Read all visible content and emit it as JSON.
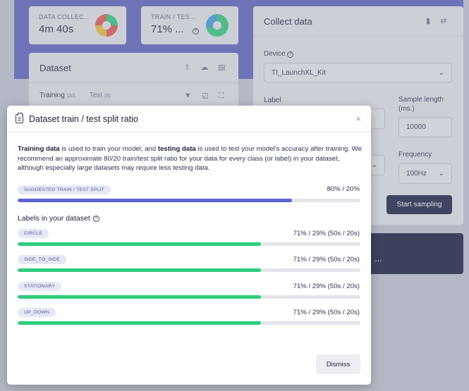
{
  "background": {
    "stats": [
      {
        "label": "DATA COLLEC...",
        "value": "4m 40s"
      },
      {
        "label": "TRAIN / TES...",
        "value": "71% ..."
      }
    ],
    "dataset": {
      "title": "Dataset",
      "tab_training": "Training",
      "training_count": "(20)",
      "tab_test": "Test",
      "test_count": "(8)"
    },
    "collect": {
      "title": "Collect data",
      "device_label": "Device",
      "device_value": "TI_LaunchXL_Kit",
      "label_label": "Label",
      "sample_length_label": "Sample length (ms.)",
      "sample_length_value": "10000",
      "frequency_label": "Frequency",
      "frequency_value": "100Hz",
      "start_button": "Start sampling"
    },
    "dark_card_text": "..."
  },
  "modal": {
    "title": "Dataset train / test split ratio",
    "close": "×",
    "desc_bold1": "Training data",
    "desc_mid1": " is used to train your model, and ",
    "desc_bold2": "testing data",
    "desc_rest": " is used to test your model's accuracy after training. We recommend an approximate 80/20 train/test split ratio for your data for every class (or label) in your dataset, although especially large datasets may require less testing data.",
    "suggested": {
      "label": "SUGGESTED TRAIN / TEST SPLIT",
      "ratio": "80% / 20%",
      "fraction": 0.8
    },
    "labels_title": "Labels in your dataset",
    "labels": [
      {
        "name": "CIRCLE",
        "ratio": "71% / 29% (50s / 20s)",
        "fraction": 0.71
      },
      {
        "name": "SIDE_TO_SIDE",
        "ratio": "71% / 29% (50s / 20s)",
        "fraction": 0.71
      },
      {
        "name": "STATIONARY",
        "ratio": "71% / 29% (50s / 20s)",
        "fraction": 0.71
      },
      {
        "name": "UP_DOWN",
        "ratio": "71% / 29% (50s / 20s)",
        "fraction": 0.71
      }
    ],
    "dismiss_label": "Dismiss"
  },
  "colors": {
    "suggested_bar": "#5b63d3",
    "label_bar": "#2ecc7a"
  }
}
